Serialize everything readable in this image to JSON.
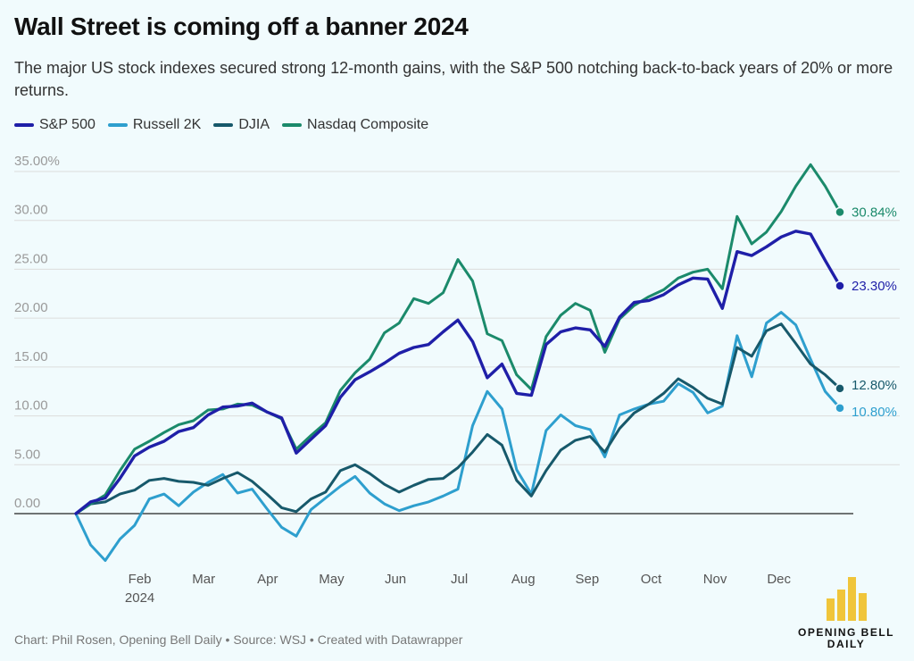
{
  "chart_data": {
    "type": "line",
    "title": "Wall Street is coming off a banner 2024",
    "subtitle": "The major US stock indexes secured strong 12-month gains, with the S&P 500 notching back-to-back years of 20% or more returns.",
    "xlabel": "",
    "ylabel": "",
    "ylim": [
      -4,
      38
    ],
    "y_ticks": [
      0,
      5,
      10,
      15,
      20,
      25,
      30,
      35
    ],
    "y_tick_labels": [
      "0.00",
      "5.00",
      "10.00",
      "15.00",
      "20.00",
      "25.00",
      "30.00",
      "35.00%"
    ],
    "x_months": [
      "Feb",
      "Mar",
      "Apr",
      "May",
      "Jun",
      "Jul",
      "Aug",
      "Sep",
      "Oct",
      "Nov",
      "Dec"
    ],
    "x_year_label": "2024",
    "x_points": [
      "Jan 2",
      "Jan 9",
      "Jan 16",
      "Jan 23",
      "Jan 30",
      "Feb 6",
      "Feb 13",
      "Feb 20",
      "Feb 27",
      "Mar 5",
      "Mar 12",
      "Mar 19",
      "Mar 26",
      "Apr 2",
      "Apr 9",
      "Apr 16",
      "Apr 23",
      "Apr 30",
      "May 7",
      "May 14",
      "May 21",
      "May 28",
      "Jun 4",
      "Jun 11",
      "Jun 18",
      "Jun 25",
      "Jul 2",
      "Jul 9",
      "Jul 16",
      "Jul 23",
      "Jul 30",
      "Aug 5",
      "Aug 12",
      "Aug 19",
      "Aug 26",
      "Sep 3",
      "Sep 9",
      "Sep 16",
      "Sep 23",
      "Sep 30",
      "Oct 7",
      "Oct 14",
      "Oct 21",
      "Oct 28",
      "Nov 4",
      "Nov 11",
      "Nov 18",
      "Nov 25",
      "Dec 2",
      "Dec 9",
      "Dec 16",
      "Dec 23",
      "Dec 31"
    ],
    "series": [
      {
        "name": "S&P 500",
        "color": "#1f1fa8",
        "end_label": "23.30%",
        "values": [
          0,
          1.2,
          1.6,
          3.6,
          5.9,
          6.8,
          7.4,
          8.4,
          8.8,
          10.1,
          10.9,
          11.0,
          11.3,
          10.4,
          9.8,
          6.2,
          7.6,
          9.0,
          11.9,
          13.7,
          14.5,
          15.4,
          16.4,
          17.0,
          17.3,
          18.6,
          19.8,
          17.6,
          13.9,
          15.3,
          12.3,
          12.1,
          17.3,
          18.6,
          19.0,
          18.8,
          17.1,
          20.1,
          21.6,
          21.8,
          22.4,
          23.4,
          24.1,
          24.0,
          21.0,
          26.8,
          26.4,
          27.3,
          28.3,
          28.9,
          28.6,
          25.9,
          23.3
        ]
      },
      {
        "name": "Nasdaq Composite",
        "color": "#1b8a6b",
        "end_label": "30.84%",
        "values": [
          0,
          1.0,
          1.9,
          4.4,
          6.6,
          7.4,
          8.3,
          9.1,
          9.5,
          10.6,
          10.7,
          11.2,
          11.1,
          10.4,
          9.7,
          6.6,
          8.0,
          9.3,
          12.6,
          14.4,
          15.8,
          18.5,
          19.5,
          22.0,
          21.5,
          22.6,
          26.0,
          23.8,
          18.4,
          17.7,
          14.2,
          12.7,
          18.1,
          20.3,
          21.5,
          20.8,
          16.5,
          19.9,
          21.3,
          22.2,
          22.9,
          24.1,
          24.7,
          25.0,
          23.0,
          30.4,
          27.6,
          28.8,
          30.9,
          33.5,
          35.7,
          33.5,
          30.84
        ]
      },
      {
        "name": "DJIA",
        "color": "#17596b",
        "end_label": "12.80%",
        "values": [
          0,
          1.0,
          1.2,
          2.0,
          2.4,
          3.4,
          3.6,
          3.3,
          3.2,
          2.9,
          3.6,
          4.2,
          3.3,
          2.0,
          0.6,
          0.2,
          1.5,
          2.2,
          4.4,
          5.0,
          4.1,
          3.0,
          2.2,
          2.9,
          3.5,
          3.6,
          4.7,
          6.3,
          8.1,
          7.0,
          3.4,
          1.8,
          4.4,
          6.5,
          7.5,
          7.9,
          6.3,
          8.7,
          10.3,
          11.2,
          12.3,
          13.8,
          12.9,
          11.8,
          11.2,
          17.0,
          16.1,
          18.7,
          19.4,
          17.4,
          15.3,
          14.2,
          12.8
        ]
      },
      {
        "name": "Russell 2K",
        "color": "#2e9fce",
        "end_label": "10.80%",
        "values": [
          0,
          -3.2,
          -4.8,
          -2.6,
          -1.2,
          1.5,
          2.0,
          0.8,
          2.2,
          3.2,
          4.0,
          2.1,
          2.5,
          0.5,
          -1.4,
          -2.3,
          0.4,
          1.6,
          2.8,
          3.8,
          2.1,
          1.0,
          0.3,
          0.8,
          1.2,
          1.8,
          2.5,
          9.0,
          12.5,
          10.7,
          4.5,
          2.0,
          8.5,
          10.1,
          9.0,
          8.6,
          5.8,
          10.1,
          10.7,
          11.2,
          11.5,
          13.3,
          12.4,
          10.3,
          11.0,
          18.2,
          14.0,
          19.5,
          20.6,
          19.3,
          15.8,
          12.5,
          10.8
        ]
      }
    ]
  },
  "legend_title": "",
  "source_text": "Chart: Phil Rosen, Opening Bell Daily • Source: WSJ • Created with Datawrapper",
  "logo": {
    "line1": "OPENING BELL",
    "line2": "DAILY",
    "color": "#f0c53a"
  }
}
